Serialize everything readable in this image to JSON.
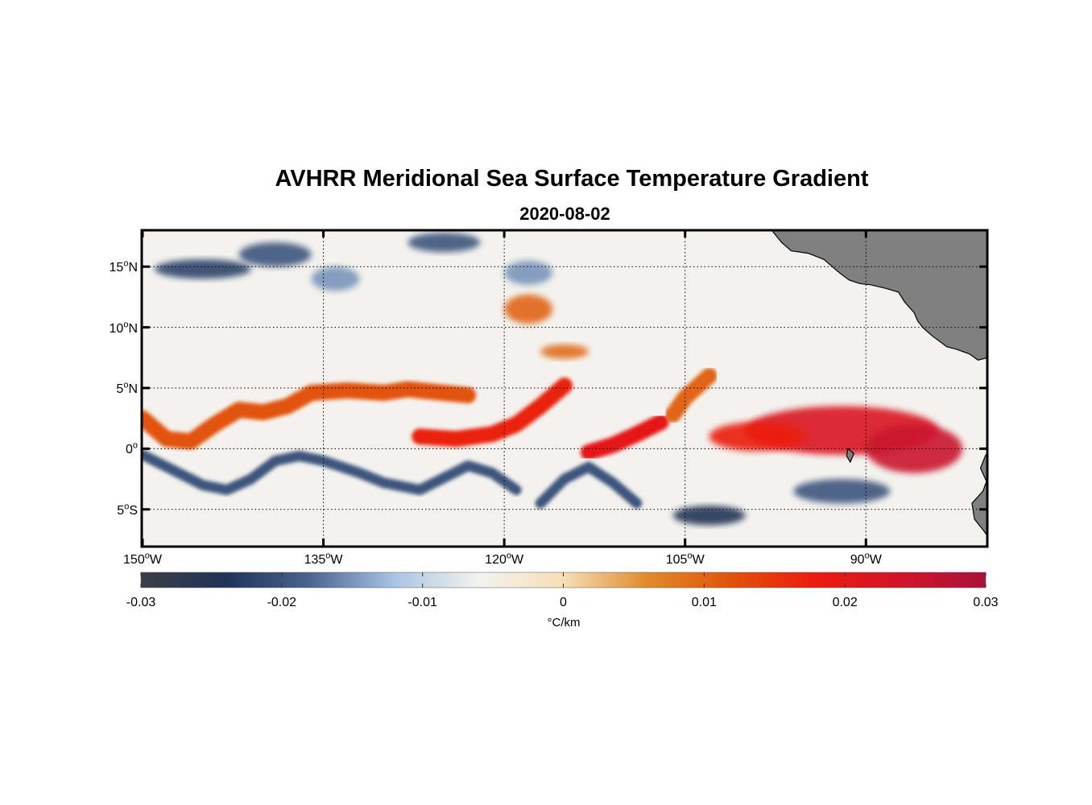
{
  "title": "AVHRR Meridional Sea Surface Temperature Gradient",
  "subtitle": "2020-08-02",
  "latitude_ticks": [
    {
      "value": 15,
      "label": "15",
      "hemi": "N"
    },
    {
      "value": 10,
      "label": "10",
      "hemi": "N"
    },
    {
      "value": 5,
      "label": "5",
      "hemi": "N"
    },
    {
      "value": 0,
      "label": "0",
      "hemi": ""
    },
    {
      "value": -5,
      "label": "5",
      "hemi": "S"
    }
  ],
  "longitude_ticks": [
    {
      "value": -150,
      "label": "150",
      "hemi": "W"
    },
    {
      "value": -135,
      "label": "135",
      "hemi": "W"
    },
    {
      "value": -120,
      "label": "120",
      "hemi": "W"
    },
    {
      "value": -105,
      "label": "105",
      "hemi": "W"
    },
    {
      "value": -90,
      "label": "90",
      "hemi": "W"
    }
  ],
  "extent": {
    "lon_min": -150,
    "lon_max": -80,
    "lat_min": -8,
    "lat_max": 18
  },
  "colorbar": {
    "min": -0.03,
    "max": 0.03,
    "tick_values": [
      -0.03,
      -0.02,
      -0.01,
      0,
      0.01,
      0.02,
      0.03
    ],
    "tick_labels": [
      "-0.03",
      "-0.02",
      "-0.01",
      "0",
      "0.01",
      "0.02",
      "0.03"
    ],
    "unit": "°C/km",
    "colors": [
      "#3a3f47",
      "#1f3357",
      "#4a6590",
      "#a9c4e4",
      "#f3f2ee",
      "#f7deb8",
      "#e08a2a",
      "#e2520a",
      "#ec1a10",
      "#d1142a",
      "#a8123a"
    ]
  },
  "colors": {
    "land": "#808080",
    "positive_band": "#e2520a",
    "negative_band": "#2f4468"
  },
  "chart_data": {
    "type": "heatmap",
    "title": "AVHRR Meridional Sea Surface Temperature Gradient",
    "subtitle": "2020-08-02",
    "xlabel": "",
    "ylabel": "",
    "xlim": [
      -150,
      -80
    ],
    "ylim": [
      -8,
      18
    ],
    "zlim": [
      -0.03,
      0.03
    ],
    "zlabel": "°C/km",
    "grid": true,
    "features": [
      {
        "kind": "positive_front",
        "value": 0.012,
        "points": [
          [
            -150,
            2.5
          ],
          [
            -148,
            0.8
          ],
          [
            -146,
            0.6
          ],
          [
            -144,
            2.0
          ],
          [
            -142,
            3.2
          ],
          [
            -140,
            3.0
          ],
          [
            -138,
            3.5
          ],
          [
            -136,
            4.6
          ],
          [
            -133,
            4.8
          ],
          [
            -130,
            4.6
          ],
          [
            -128,
            4.9
          ],
          [
            -125,
            4.6
          ],
          [
            -123,
            4.4
          ]
        ]
      },
      {
        "kind": "positive_front",
        "value": 0.017,
        "points": [
          [
            -127,
            1.0
          ],
          [
            -124,
            0.8
          ],
          [
            -121,
            1.2
          ],
          [
            -119,
            2.0
          ],
          [
            -117,
            3.5
          ],
          [
            -115,
            5.2
          ]
        ]
      },
      {
        "kind": "positive_front",
        "value": 0.019,
        "points": [
          [
            -113,
            -0.3
          ],
          [
            -111,
            0.3
          ],
          [
            -109,
            1.2
          ],
          [
            -107,
            2.2
          ]
        ]
      },
      {
        "kind": "positive_front",
        "value": 0.01,
        "points": [
          [
            -106,
            2.8
          ],
          [
            -105,
            4.2
          ],
          [
            -103,
            6.0
          ]
        ]
      },
      {
        "kind": "positive_patch",
        "value": 0.022,
        "center": [
          -92,
          1.5
        ],
        "radius": [
          8,
          2.0
        ]
      },
      {
        "kind": "positive_patch",
        "value": 0.025,
        "center": [
          -86,
          0.0
        ],
        "radius": [
          4,
          2.0
        ]
      },
      {
        "kind": "positive_patch",
        "value": 0.018,
        "center": [
          -99,
          1.0
        ],
        "radius": [
          4,
          1.2
        ]
      },
      {
        "kind": "positive_patch",
        "value": 0.01,
        "center": [
          -118,
          11.5
        ],
        "radius": [
          2,
          1.2
        ]
      },
      {
        "kind": "positive_patch",
        "value": 0.009,
        "center": [
          -115,
          8.0
        ],
        "radius": [
          2,
          0.6
        ]
      },
      {
        "kind": "negative_front",
        "value": -0.02,
        "points": [
          [
            -150,
            -0.5
          ],
          [
            -147,
            -2.0
          ],
          [
            -145,
            -3.0
          ],
          [
            -143,
            -3.4
          ],
          [
            -141,
            -2.5
          ],
          [
            -139,
            -1.0
          ],
          [
            -137,
            -0.6
          ],
          [
            -135,
            -1.0
          ],
          [
            -132,
            -2.0
          ],
          [
            -130,
            -2.8
          ],
          [
            -127,
            -3.4
          ],
          [
            -125,
            -2.4
          ],
          [
            -123,
            -1.4
          ],
          [
            -121,
            -2.0
          ],
          [
            -119,
            -3.4
          ]
        ]
      },
      {
        "kind": "negative_front",
        "value": -0.02,
        "points": [
          [
            -117,
            -4.5
          ],
          [
            -115,
            -2.5
          ],
          [
            -113,
            -1.5
          ],
          [
            -111,
            -2.8
          ],
          [
            -109,
            -4.5
          ]
        ]
      },
      {
        "kind": "negative_patch",
        "value": -0.025,
        "center": [
          -103,
          -5.5
        ],
        "radius": [
          3,
          0.8
        ]
      },
      {
        "kind": "negative_patch",
        "value": -0.02,
        "center": [
          -92,
          -3.5
        ],
        "radius": [
          4,
          1.0
        ]
      },
      {
        "kind": "negative_patch",
        "value": -0.022,
        "center": [
          -145,
          14.8
        ],
        "radius": [
          4,
          0.8
        ]
      },
      {
        "kind": "negative_patch",
        "value": -0.02,
        "center": [
          -139,
          16.0
        ],
        "radius": [
          3,
          1.0
        ]
      },
      {
        "kind": "negative_patch",
        "value": -0.02,
        "center": [
          -125,
          17.0
        ],
        "radius": [
          3,
          0.8
        ]
      },
      {
        "kind": "negative_patch",
        "value": -0.015,
        "center": [
          -134,
          14.0
        ],
        "radius": [
          2,
          1.0
        ]
      },
      {
        "kind": "negative_patch",
        "value": -0.015,
        "center": [
          -118,
          14.5
        ],
        "radius": [
          2,
          1.0
        ]
      }
    ]
  }
}
